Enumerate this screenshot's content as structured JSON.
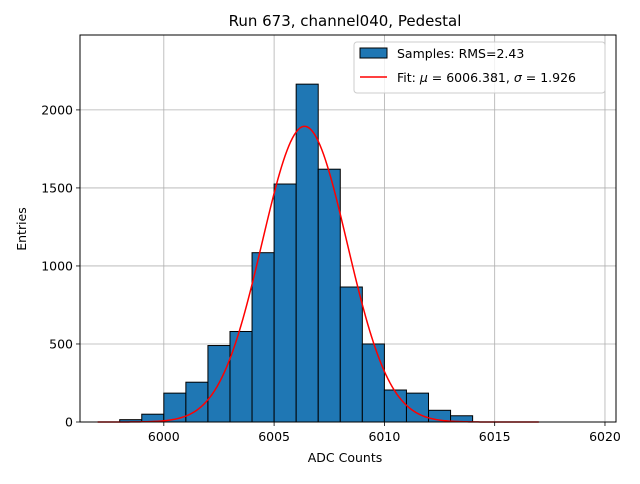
{
  "chart_data": {
    "type": "bar",
    "title": "Run 673, channel040, Pedestal",
    "xlabel": "ADC Counts",
    "ylabel": "Entries",
    "xlim": [
      5996.2,
      6020.5
    ],
    "ylim": [
      0,
      2480
    ],
    "xticks": [
      6000,
      6005,
      6010,
      6015,
      6020
    ],
    "yticks": [
      0,
      500,
      1000,
      1500,
      2000
    ],
    "grid": true,
    "legend_position": "top-right",
    "colors": {
      "bar_fill": "#1f77b4",
      "bar_edge": "#000000",
      "fit_line": "#ff0000",
      "grid": "#b0b0b0"
    },
    "histogram": {
      "name": "Samples: RMS=2.43",
      "bin_width": 1,
      "bin_edges": [
        5998,
        5999,
        6000,
        6001,
        6002,
        6003,
        6004,
        6005,
        6006,
        6007,
        6008,
        6009,
        6010,
        6011,
        6012,
        6013,
        6014
      ],
      "values": [
        15,
        50,
        185,
        255,
        490,
        580,
        1085,
        1525,
        2165,
        1620,
        865,
        500,
        205,
        185,
        75,
        40
      ]
    },
    "fit": {
      "name_prefix": "Fit: ",
      "mu_symbol": "μ",
      "mu_value": "6006.381",
      "sigma_symbol": "σ",
      "sigma_value": "1.926",
      "mu": 6006.381,
      "sigma": 1.926,
      "peak": 1895,
      "x_range": [
        5997,
        6017
      ]
    }
  }
}
